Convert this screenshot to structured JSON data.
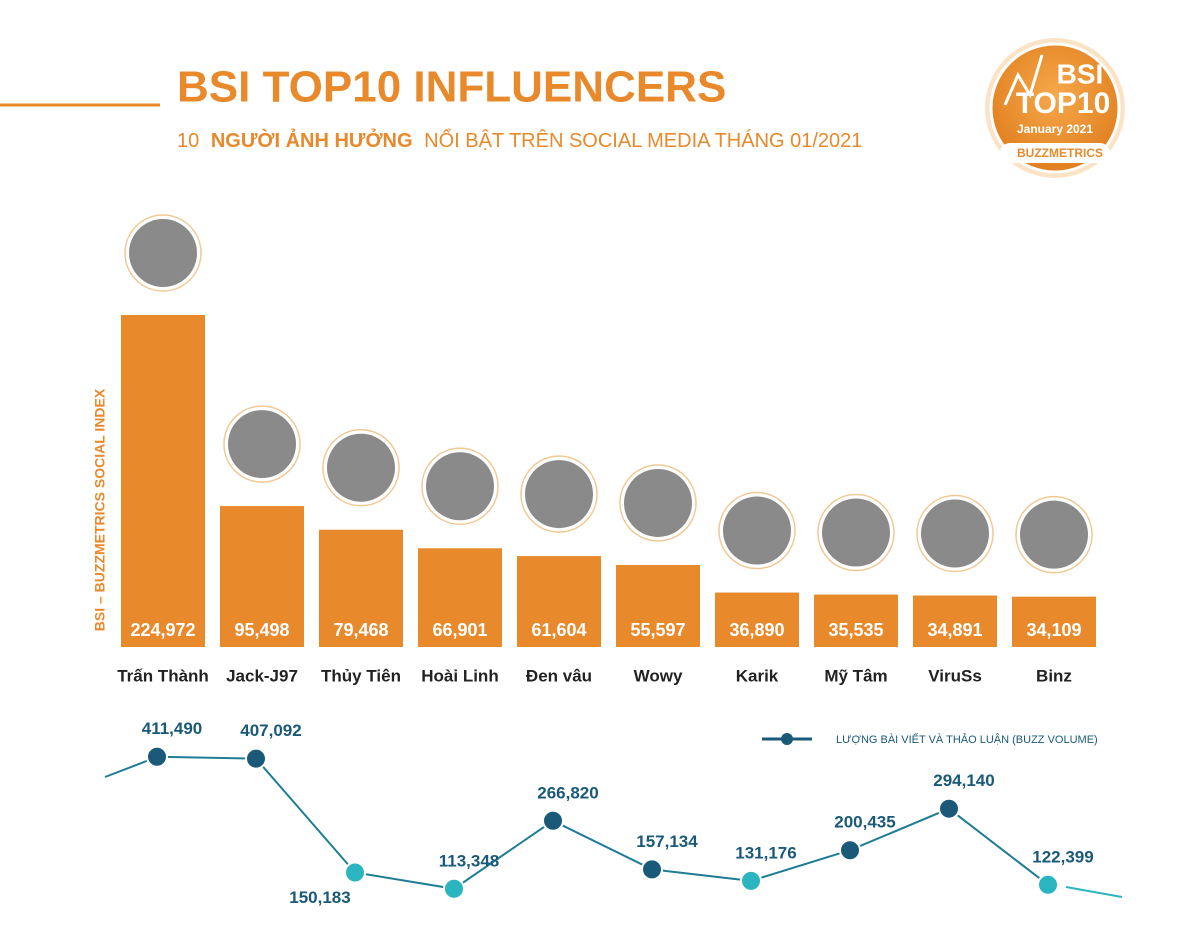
{
  "badge": {
    "line1": "BSI",
    "line2": "TOP10",
    "line3": "January 2021",
    "brand": "BUZZMETRICS"
  },
  "chart_data": [
    {
      "type": "bar",
      "title": "BSI TOP10 INFLUENCERS",
      "subtitle": [
        "10",
        "NGƯỜI ẢNH HƯỞNG",
        "NỔI BẬT TRÊN SOCIAL MEDIA THÁNG 01/2021"
      ],
      "y_label": "BSI – BUZZMETRICS SOCIAL INDEX",
      "categories": [
        "Trấn Thành",
        "Jack-J97",
        "Thủy Tiên",
        "Hoài Linh",
        "Đen vâu",
        "Wowy",
        "Karik",
        "Mỹ Tâm",
        "ViruSs",
        "Binz"
      ],
      "values": [
        224972,
        95498,
        79468,
        66901,
        61604,
        55597,
        36890,
        35535,
        34891,
        34109
      ],
      "value_labels": [
        "224,972",
        "95,498",
        "79,468",
        "66,901",
        "61,604",
        "55,597",
        "36,890",
        "35,535",
        "34,891",
        "34,109"
      ],
      "color": "#e8892b"
    },
    {
      "type": "line",
      "series": [
        {
          "name": "LƯỢNG BÀI VIẾT VÀ THẢO LUẬN (BUZZ VOLUME)",
          "color": "#1a5a78",
          "values": [
            411490,
            407092,
            150183,
            113348,
            266820,
            157134,
            131176,
            200435,
            294140,
            122399
          ],
          "value_labels": [
            "411,490",
            "407,092",
            "150,183",
            "113,348",
            "266,820",
            "157,134",
            "131,176",
            "200,435",
            "294,140",
            "122,399"
          ],
          "point_colors": [
            "#1a5a78",
            "#1a5a78",
            "#2bb5c0",
            "#2bb5c0",
            "#1a5a78",
            "#1a5a78",
            "#2bb5c0",
            "#1a5a78",
            "#1a5a78",
            "#2bb5c0"
          ]
        }
      ]
    }
  ]
}
